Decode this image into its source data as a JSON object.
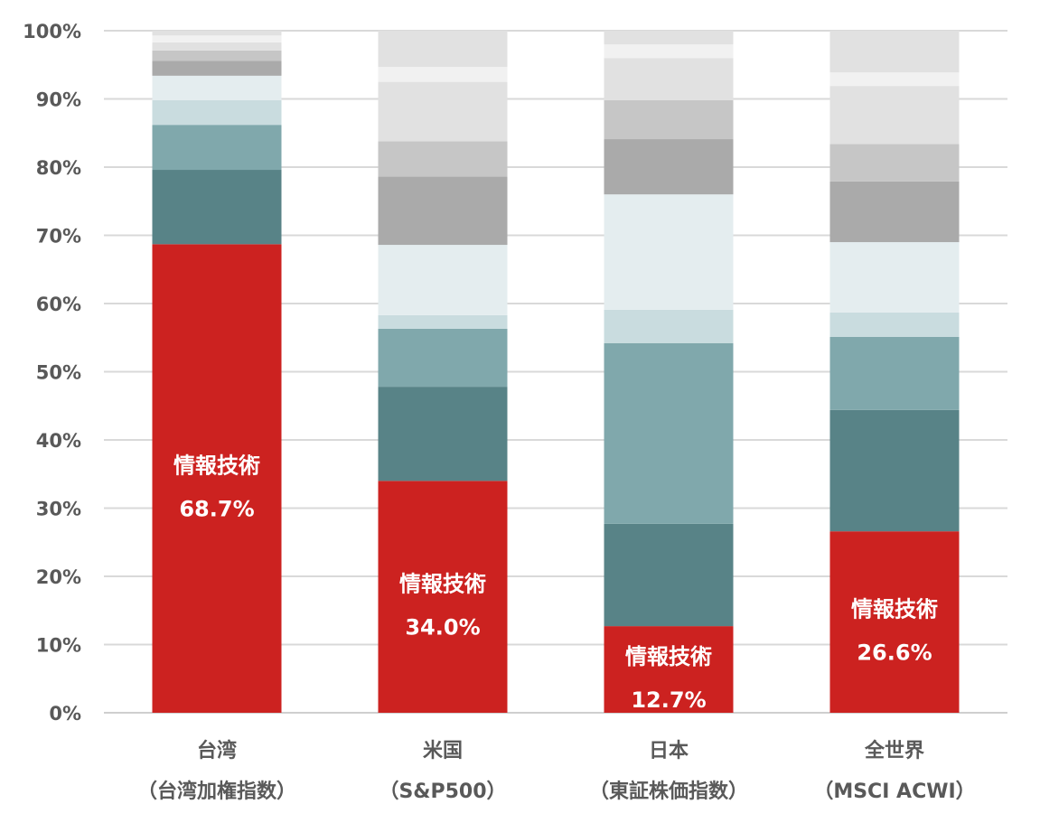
{
  "chart_data": {
    "type": "bar",
    "stacked": true,
    "ylim": [
      0,
      100
    ],
    "yticks": [
      "0%",
      "10%",
      "20%",
      "30%",
      "40%",
      "50%",
      "60%",
      "70%",
      "80%",
      "90%",
      "100%"
    ],
    "grid": true,
    "categories": [
      {
        "name": "台湾",
        "sub": "（台湾加権指数）"
      },
      {
        "name": "米国",
        "sub": "（S&P500）"
      },
      {
        "name": "日本",
        "sub": "（東証株価指数）"
      },
      {
        "name": "全世界",
        "sub": "（MSCI ACWI）"
      }
    ],
    "segment_colors": [
      "#cc2220",
      "#588387",
      "#80a8ac",
      "#c9dcdf",
      "#e4edef",
      "#aaaaaa",
      "#c6c6c6",
      "#e1e1e1",
      "#f1f1f1",
      "#e1e1e1"
    ],
    "stacks": [
      [
        68.7,
        10.9,
        6.6,
        3.6,
        3.6,
        2.2,
        1.5,
        1.2,
        1.0,
        0.7
      ],
      [
        34.0,
        13.8,
        8.5,
        2.0,
        10.3,
        10.0,
        5.2,
        8.7,
        2.2,
        5.3
      ],
      [
        12.7,
        15.0,
        26.5,
        4.9,
        16.9,
        8.1,
        5.7,
        6.2,
        2.0,
        2.0
      ],
      [
        26.6,
        17.8,
        10.7,
        3.6,
        10.3,
        8.9,
        5.5,
        8.5,
        2.0,
        6.1
      ]
    ],
    "data_labels": [
      {
        "sector": "情報技術",
        "value": "68.7%"
      },
      {
        "sector": "情報技術",
        "value": "34.0%"
      },
      {
        "sector": "情報技術",
        "value": "12.7%"
      },
      {
        "sector": "情報技術",
        "value": "26.6%"
      }
    ]
  }
}
